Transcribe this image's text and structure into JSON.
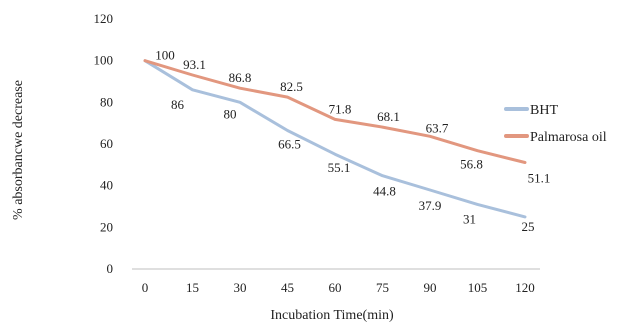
{
  "chart_data": {
    "type": "line",
    "title": "",
    "xlabel": "Incubation Time(min)",
    "ylabel": "% absorbancwe decrease",
    "x": [
      0,
      15,
      30,
      45,
      60,
      75,
      90,
      105,
      120
    ],
    "x_tick_labels": [
      "0",
      "15",
      "30",
      "45",
      "60",
      "75",
      "90",
      "105",
      "120"
    ],
    "ylim": [
      0,
      120
    ],
    "y_ticks": [
      0,
      20,
      40,
      60,
      80,
      100,
      120
    ],
    "grid": false,
    "legend_position": "right",
    "series": [
      {
        "name": "BHT",
        "color": "#a9c0dc",
        "values": [
          100,
          86,
          80,
          66.5,
          55.1,
          44.8,
          37.9,
          31,
          25
        ],
        "labels": [
          "100",
          "86",
          "80",
          "66.5",
          "55.1",
          "44.8",
          "37.9",
          "31",
          "25"
        ]
      },
      {
        "name": "Palmarosa oil",
        "color": "#e2977f",
        "values": [
          100,
          93.1,
          86.8,
          82.5,
          71.8,
          68.1,
          63.7,
          56.8,
          51.1
        ],
        "labels": [
          "100",
          "93.1",
          "86.8",
          "82.5",
          "71.8",
          "68.1",
          "63.7",
          "56.8",
          "51.1"
        ]
      }
    ]
  }
}
